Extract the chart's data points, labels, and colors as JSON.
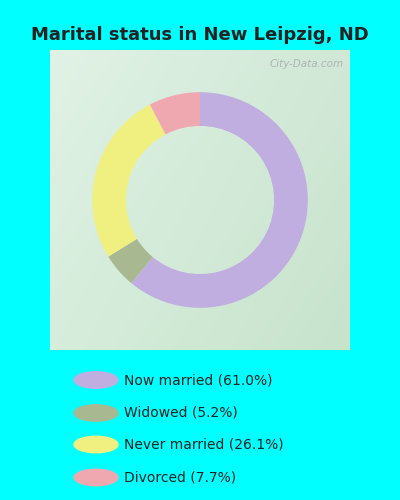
{
  "title": "Marital status in New Leipzig, ND",
  "categories": [
    "Now married",
    "Widowed",
    "Never married",
    "Divorced"
  ],
  "values": [
    61.0,
    5.2,
    26.1,
    7.7
  ],
  "colors": [
    "#c0aee0",
    "#a8b890",
    "#f0f080",
    "#f0a8b0"
  ],
  "legend_labels": [
    "Now married (61.0%)",
    "Widowed (5.2%)",
    "Never married (26.1%)",
    "Divorced (7.7%)"
  ],
  "bg_color": "#00ffff",
  "watermark": "City-Data.com",
  "donut_width": 0.36,
  "title_fontsize": 13,
  "title_color": "#222222"
}
